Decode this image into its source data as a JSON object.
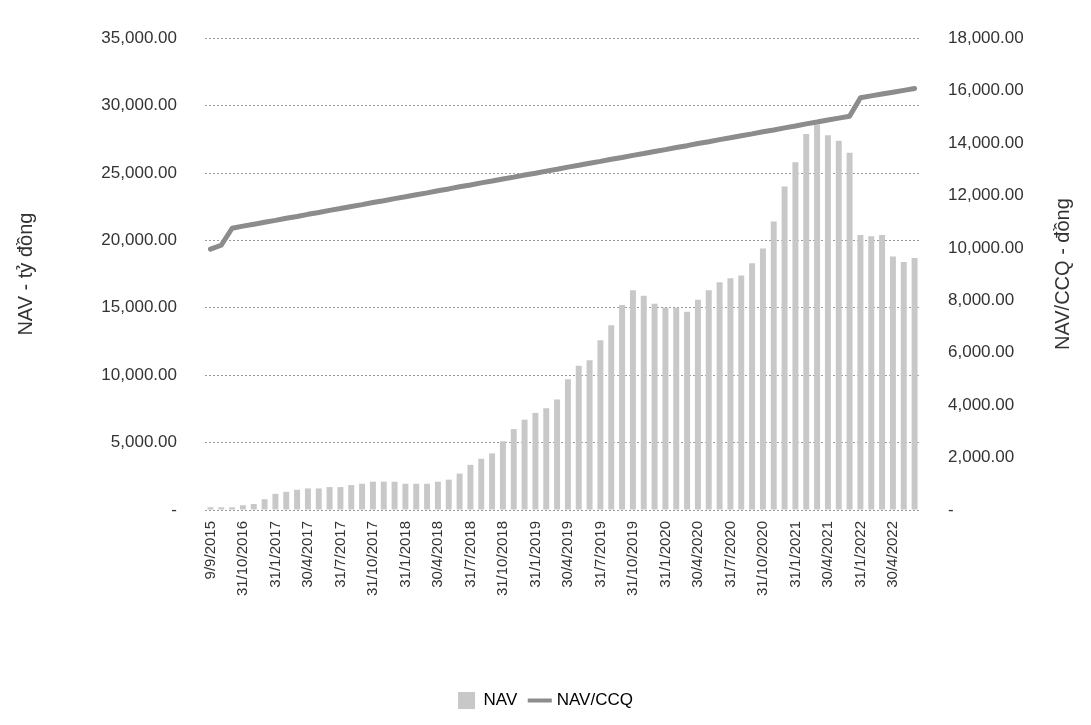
{
  "chart_data": {
    "type": "bar",
    "ylabel": "NAV - tỷ đồng",
    "y2label": "NAV/CCQ - đồng",
    "categories": [
      "9/9/2015",
      null,
      null,
      "31/10/2016",
      null,
      null,
      "31/1/2017",
      null,
      null,
      "30/4/2017",
      null,
      null,
      "31/7/2017",
      null,
      null,
      "31/10/2017",
      null,
      null,
      "31/1/2018",
      null,
      null,
      "30/4/2018",
      null,
      null,
      "31/7/2018",
      null,
      null,
      "31/10/2018",
      null,
      null,
      "31/1/2019",
      null,
      null,
      "30/4/2019",
      null,
      null,
      "31/7/2019",
      null,
      null,
      "31/10/2019",
      null,
      null,
      "31/1/2020",
      null,
      null,
      "30/4/2020",
      null,
      null,
      "31/7/2020",
      null,
      null,
      "31/10/2020",
      null,
      null,
      "31/1/2021",
      null,
      null,
      "30/4/2021",
      null,
      null,
      "31/1/2022",
      null,
      null,
      "30/4/2022",
      null,
      null
    ],
    "series": [
      {
        "name": "NAV",
        "color": "#c8c8c8",
        "values": [
          200,
          200,
          200,
          350,
          450,
          800,
          1200,
          1350,
          1500,
          1600,
          1600,
          1700,
          1700,
          1850,
          1950,
          2100,
          2100,
          2100,
          1950,
          1950,
          1950,
          2100,
          2250,
          2700,
          3350,
          3800,
          4200,
          5100,
          6000,
          6700,
          7200,
          7550,
          8200,
          9700,
          10700,
          11100,
          12600,
          13700,
          15200,
          16300,
          15900,
          15300,
          15000,
          15000,
          14700,
          15600,
          16300,
          16900,
          17200,
          17400,
          18300,
          19400,
          21400,
          24000,
          25800,
          27900,
          28600,
          27800,
          27400,
          26500,
          20400,
          20300,
          20400,
          18800,
          18400,
          18700
        ]
      },
      {
        "name": "NAV/CCQ",
        "type": "line",
        "axis": "y2",
        "color": "#8c8c8c",
        "values": [
          9950,
          10100,
          10750,
          10830,
          10900,
          10980,
          11050,
          11130,
          11200,
          11280,
          11350,
          11430,
          11500,
          11580,
          11650,
          11730,
          11800,
          11880,
          11950,
          12030,
          12100,
          12180,
          12250,
          12330,
          12400,
          12480,
          12550,
          12630,
          12700,
          12780,
          12850,
          12930,
          13000,
          13080,
          13150,
          13230,
          13300,
          13380,
          13450,
          13530,
          13600,
          13680,
          13750,
          13830,
          13900,
          13980,
          14050,
          14130,
          14200,
          14280,
          14350,
          14430,
          14500,
          14580,
          14650,
          14730,
          14800,
          14880,
          14950,
          15020,
          15730,
          15800,
          15870,
          15940,
          16010,
          16080
        ]
      }
    ],
    "ylim": [
      0,
      35000
    ],
    "yticks": [
      {
        "value": 0,
        "label": "-"
      },
      {
        "value": 5000,
        "label": "5,000.00"
      },
      {
        "value": 10000,
        "label": "10,000.00"
      },
      {
        "value": 15000,
        "label": "15,000.00"
      },
      {
        "value": 20000,
        "label": "20,000.00"
      },
      {
        "value": 25000,
        "label": "25,000.00"
      },
      {
        "value": 30000,
        "label": "30,000.00"
      },
      {
        "value": 35000,
        "label": "35,000.00"
      }
    ],
    "y2lim": [
      0,
      18000
    ],
    "y2ticks": [
      {
        "value": 0,
        "label": "-"
      },
      {
        "value": 2000,
        "label": "2,000.00"
      },
      {
        "value": 4000,
        "label": "4,000.00"
      },
      {
        "value": 6000,
        "label": "6,000.00"
      },
      {
        "value": 8000,
        "label": "8,000.00"
      },
      {
        "value": 10000,
        "label": "10,000.00"
      },
      {
        "value": 12000,
        "label": "12,000.00"
      },
      {
        "value": 14000,
        "label": "14,000.00"
      },
      {
        "value": 16000,
        "label": "16,000.00"
      },
      {
        "value": 18000,
        "label": "18,000.00"
      }
    ],
    "grid": "y",
    "legend": "bottom",
    "marker": "none"
  }
}
